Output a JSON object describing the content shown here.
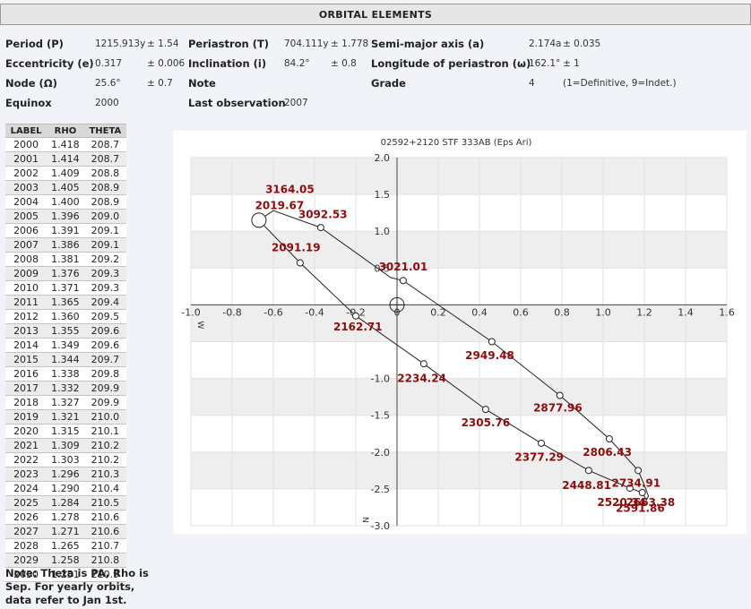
{
  "header": {
    "title": "ORBITAL ELEMENTS"
  },
  "elements": {
    "period_label": "Period (P)",
    "period_value": "1215.913y",
    "period_err": "± 1.54",
    "periastron_label": "Periastron (T)",
    "periastron_value": "704.111y",
    "periastron_err": "± 1.778",
    "semimajor_label": "Semi-major axis (a)",
    "semimajor_value": "2.174a",
    "semimajor_err": "± 0.035",
    "ecc_label": "Eccentricity (e)",
    "ecc_value": "0.317",
    "ecc_err": "± 0.006",
    "incl_label": "Inclination (i)",
    "incl_value": "84.2°",
    "incl_err": "± 0.8",
    "longperi_label": "Longitude of periastron (ω)",
    "longperi_value": "162.1°",
    "longperi_err": "± 1",
    "node_label": "Node (Ω)",
    "node_value": "25.6°",
    "node_err": "± 0.7",
    "note_label": "Note",
    "grade_label": "Grade",
    "grade_value": "4",
    "grade_hint": "(1=Definitive, 9=Indet.)",
    "equinox_label": "Equinox",
    "equinox_value": "2000",
    "lastobs_label": "Last observation",
    "lastobs_value": "2007"
  },
  "ephemeris": {
    "headers": [
      "LABEL",
      "RHO",
      "THETA"
    ],
    "rows": [
      [
        "2000",
        "1.418",
        "208.7"
      ],
      [
        "2001",
        "1.414",
        "208.7"
      ],
      [
        "2002",
        "1.409",
        "208.8"
      ],
      [
        "2003",
        "1.405",
        "208.9"
      ],
      [
        "2004",
        "1.400",
        "208.9"
      ],
      [
        "2005",
        "1.396",
        "209.0"
      ],
      [
        "2006",
        "1.391",
        "209.1"
      ],
      [
        "2007",
        "1.386",
        "209.1"
      ],
      [
        "2008",
        "1.381",
        "209.2"
      ],
      [
        "2009",
        "1.376",
        "209.3"
      ],
      [
        "2010",
        "1.371",
        "209.3"
      ],
      [
        "2011",
        "1.365",
        "209.4"
      ],
      [
        "2012",
        "1.360",
        "209.5"
      ],
      [
        "2013",
        "1.355",
        "209.6"
      ],
      [
        "2014",
        "1.349",
        "209.6"
      ],
      [
        "2015",
        "1.344",
        "209.7"
      ],
      [
        "2016",
        "1.338",
        "209.8"
      ],
      [
        "2017",
        "1.332",
        "209.9"
      ],
      [
        "2018",
        "1.327",
        "209.9"
      ],
      [
        "2019",
        "1.321",
        "210.0"
      ],
      [
        "2020",
        "1.315",
        "210.1"
      ],
      [
        "2021",
        "1.309",
        "210.2"
      ],
      [
        "2022",
        "1.303",
        "210.2"
      ],
      [
        "2023",
        "1.296",
        "210.3"
      ],
      [
        "2024",
        "1.290",
        "210.4"
      ],
      [
        "2025",
        "1.284",
        "210.5"
      ],
      [
        "2026",
        "1.278",
        "210.6"
      ],
      [
        "2027",
        "1.271",
        "210.6"
      ],
      [
        "2028",
        "1.265",
        "210.7"
      ],
      [
        "2029",
        "1.258",
        "210.8"
      ],
      [
        "2030",
        "1.251",
        "210.9"
      ]
    ]
  },
  "note_text": "Note: Theta is PA, Rho is Sep. For yearly orbits, data refer to Jan 1st.",
  "chart_data": {
    "type": "line",
    "title": "02592+2120 STF 333AB (Eps Ari)",
    "xlim": [
      -1.0,
      1.6
    ],
    "ylim": [
      -3.0,
      2.0
    ],
    "x_ticks": [
      -1.0,
      -0.8,
      -0.6,
      -0.4,
      -0.2,
      0,
      0.2,
      0.4,
      0.6,
      0.8,
      1.0,
      1.2,
      1.4,
      1.6
    ],
    "x_tick_labels": [
      "-1.0",
      "-0.8",
      "-0.6",
      "-0.4",
      "-0.2",
      "0",
      "0.2",
      "0.4",
      "0.6",
      "0.8",
      "1.0",
      "1.2",
      "1.4",
      "1.6"
    ],
    "y_ticks": [
      2.0,
      1.5,
      1.0,
      0.5,
      -1.0,
      -1.5,
      -2.0,
      -2.5,
      -3.0
    ],
    "y_tick_labels": [
      "2.0",
      "1.5",
      "1.0",
      "0.5",
      "-1.0",
      "-1.5",
      "-2.0",
      "-2.5",
      "-3.0"
    ],
    "x_axis_mark": "W",
    "y_axis_mark": "N",
    "primary_star": [
      0,
      0
    ],
    "current_position": [
      -0.67,
      1.15
    ],
    "orbit_x": [
      -0.67,
      -0.6,
      -0.37,
      -0.03,
      0.03,
      0.46,
      0.79,
      1.03,
      1.17,
      1.2,
      1.22,
      1.21,
      1.19,
      1.13,
      0.93,
      0.7,
      0.43,
      0.13,
      -0.2,
      -0.47,
      -0.67
    ],
    "orbit_y": [
      1.15,
      1.28,
      1.05,
      0.37,
      0.33,
      -0.5,
      -1.23,
      -1.82,
      -2.25,
      -2.45,
      -2.6,
      -2.65,
      -2.55,
      -2.49,
      -2.25,
      -1.88,
      -1.42,
      -0.8,
      -0.15,
      0.57,
      1.15
    ],
    "markers": [
      {
        "x": 0.03,
        "y": 0.33
      },
      {
        "x": 0.46,
        "y": -0.5
      },
      {
        "x": 0.79,
        "y": -1.23
      },
      {
        "x": 1.03,
        "y": -1.82
      },
      {
        "x": 1.17,
        "y": -2.25
      },
      {
        "x": 1.19,
        "y": -2.55
      },
      {
        "x": 1.13,
        "y": -2.49
      },
      {
        "x": 0.93,
        "y": -2.25
      },
      {
        "x": 0.7,
        "y": -1.88
      },
      {
        "x": 0.43,
        "y": -1.42
      },
      {
        "x": 0.13,
        "y": -0.8
      },
      {
        "x": -0.2,
        "y": -0.15
      },
      {
        "x": -0.47,
        "y": 0.57
      },
      {
        "x": -0.37,
        "y": 1.05
      }
    ],
    "epoch_labels": [
      {
        "text": "3164.05",
        "x": -0.52,
        "y": 1.52
      },
      {
        "text": "2019.67",
        "x": -0.57,
        "y": 1.3
      },
      {
        "text": "3092.53",
        "x": -0.36,
        "y": 1.18
      },
      {
        "text": "3021.01",
        "x": 0.03,
        "y": 0.47
      },
      {
        "text": "2091.19",
        "x": -0.49,
        "y": 0.73
      },
      {
        "text": "2162.71",
        "x": -0.19,
        "y": -0.35
      },
      {
        "text": "2949.48",
        "x": 0.45,
        "y": -0.74
      },
      {
        "text": "2234.24",
        "x": 0.12,
        "y": -1.05
      },
      {
        "text": "2877.96",
        "x": 0.78,
        "y": -1.45
      },
      {
        "text": "2305.76",
        "x": 0.43,
        "y": -1.65
      },
      {
        "text": "2806.43",
        "x": 1.02,
        "y": -2.05
      },
      {
        "text": "2377.29",
        "x": 0.69,
        "y": -2.12
      },
      {
        "text": "2734.91",
        "x": 1.16,
        "y": -2.47
      },
      {
        "text": "2448.81",
        "x": 0.92,
        "y": -2.5
      },
      {
        "text": "2663.38",
        "x": 1.23,
        "y": -2.73
      },
      {
        "text": "2520.34",
        "x": 1.09,
        "y": -2.73
      },
      {
        "text": "2591.86",
        "x": 1.18,
        "y": -2.81
      }
    ]
  }
}
